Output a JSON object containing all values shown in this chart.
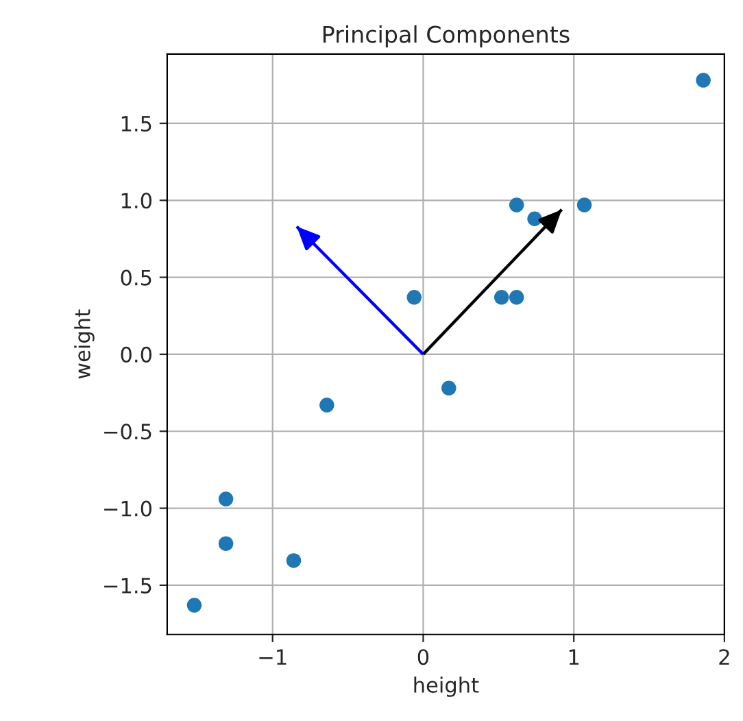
{
  "chart_data": {
    "type": "scatter",
    "title": "Principal Components",
    "xlabel": "height",
    "ylabel": "weight",
    "xlim": [
      -1.7,
      2.0
    ],
    "ylim": [
      -1.82,
      1.95
    ],
    "xticks": [
      {
        "value": -1,
        "label": "−1"
      },
      0,
      1,
      2
    ],
    "yticks": [
      {
        "value": -1.5,
        "label": "−1.5"
      },
      {
        "value": -1.0,
        "label": "−1.0"
      },
      {
        "value": -0.5,
        "label": "−0.5"
      },
      {
        "value": 0,
        "label": "0.0"
      },
      {
        "value": 0.5,
        "label": "0.5"
      },
      {
        "value": 1.0,
        "label": "1.0"
      },
      {
        "value": 1.5,
        "label": "1.5"
      }
    ],
    "grid": true,
    "series": [
      {
        "marker": "circle",
        "color": "#1f77b4",
        "x": [
          1.86,
          0.62,
          0.74,
          1.07,
          0.52,
          0.62,
          -0.06,
          0.17,
          -0.64,
          -1.31,
          -1.31,
          -0.86,
          -1.52
        ],
        "values": [
          1.78,
          0.97,
          0.88,
          0.97,
          0.37,
          0.37,
          0.37,
          -0.22,
          -0.33,
          -0.94,
          -1.23,
          -1.34,
          -1.63
        ]
      },
      {
        "type": "line",
        "color": "#0000ff",
        "x": [
          0,
          -0.84
        ],
        "values": [
          0,
          0.83
        ]
      },
      {
        "type": "line",
        "color": "#000000",
        "x": [
          0,
          0.92
        ],
        "values": [
          0,
          0.94
        ]
      }
    ]
  }
}
